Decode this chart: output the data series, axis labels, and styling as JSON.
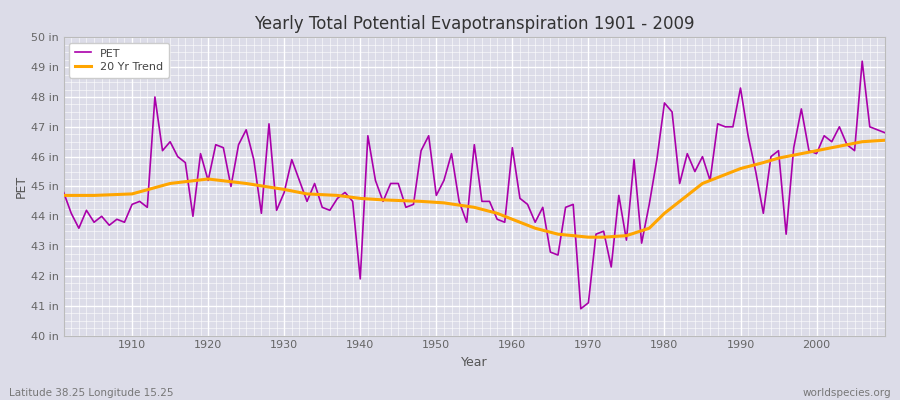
{
  "title": "Yearly Total Potential Evapotranspiration 1901 - 2009",
  "xlabel": "Year",
  "ylabel": "PET",
  "subtitle_left": "Latitude 38.25 Longitude 15.25",
  "subtitle_right": "worldspecies.org",
  "ylim": [
    40,
    50
  ],
  "pet_color": "#aa00aa",
  "trend_color": "#ffa500",
  "bg_color": "#dcdce8",
  "fig_color": "#dcdce8",
  "pet_data": [
    [
      1901,
      44.8
    ],
    [
      1902,
      44.1
    ],
    [
      1903,
      43.6
    ],
    [
      1904,
      44.2
    ],
    [
      1905,
      43.8
    ],
    [
      1906,
      44.0
    ],
    [
      1907,
      43.7
    ],
    [
      1908,
      43.9
    ],
    [
      1909,
      43.8
    ],
    [
      1910,
      44.4
    ],
    [
      1911,
      44.5
    ],
    [
      1912,
      44.3
    ],
    [
      1913,
      48.0
    ],
    [
      1914,
      46.2
    ],
    [
      1915,
      46.5
    ],
    [
      1916,
      46.0
    ],
    [
      1917,
      45.8
    ],
    [
      1918,
      44.0
    ],
    [
      1919,
      46.1
    ],
    [
      1920,
      45.2
    ],
    [
      1921,
      46.4
    ],
    [
      1922,
      46.3
    ],
    [
      1923,
      45.0
    ],
    [
      1924,
      46.4
    ],
    [
      1925,
      46.9
    ],
    [
      1926,
      45.9
    ],
    [
      1927,
      44.1
    ],
    [
      1928,
      47.1
    ],
    [
      1929,
      44.2
    ],
    [
      1930,
      44.8
    ],
    [
      1931,
      45.9
    ],
    [
      1932,
      45.2
    ],
    [
      1933,
      44.5
    ],
    [
      1934,
      45.1
    ],
    [
      1935,
      44.3
    ],
    [
      1936,
      44.2
    ],
    [
      1937,
      44.6
    ],
    [
      1938,
      44.8
    ],
    [
      1939,
      44.5
    ],
    [
      1940,
      41.9
    ],
    [
      1941,
      46.7
    ],
    [
      1942,
      45.2
    ],
    [
      1943,
      44.5
    ],
    [
      1944,
      45.1
    ],
    [
      1945,
      45.1
    ],
    [
      1946,
      44.3
    ],
    [
      1947,
      44.4
    ],
    [
      1948,
      46.2
    ],
    [
      1949,
      46.7
    ],
    [
      1950,
      44.7
    ],
    [
      1951,
      45.2
    ],
    [
      1952,
      46.1
    ],
    [
      1953,
      44.5
    ],
    [
      1954,
      43.8
    ],
    [
      1955,
      46.4
    ],
    [
      1956,
      44.5
    ],
    [
      1957,
      44.5
    ],
    [
      1958,
      43.9
    ],
    [
      1959,
      43.8
    ],
    [
      1960,
      46.3
    ],
    [
      1961,
      44.6
    ],
    [
      1962,
      44.4
    ],
    [
      1963,
      43.8
    ],
    [
      1964,
      44.3
    ],
    [
      1965,
      42.8
    ],
    [
      1966,
      42.7
    ],
    [
      1967,
      44.3
    ],
    [
      1968,
      44.4
    ],
    [
      1969,
      40.9
    ],
    [
      1970,
      41.1
    ],
    [
      1971,
      43.4
    ],
    [
      1972,
      43.5
    ],
    [
      1973,
      42.3
    ],
    [
      1974,
      44.7
    ],
    [
      1975,
      43.2
    ],
    [
      1976,
      45.9
    ],
    [
      1977,
      43.1
    ],
    [
      1978,
      44.4
    ],
    [
      1979,
      45.9
    ],
    [
      1980,
      47.8
    ],
    [
      1981,
      47.5
    ],
    [
      1982,
      45.1
    ],
    [
      1983,
      46.1
    ],
    [
      1984,
      45.5
    ],
    [
      1985,
      46.0
    ],
    [
      1986,
      45.2
    ],
    [
      1987,
      47.1
    ],
    [
      1988,
      47.0
    ],
    [
      1989,
      47.0
    ],
    [
      1990,
      48.3
    ],
    [
      1991,
      46.7
    ],
    [
      1992,
      45.5
    ],
    [
      1993,
      44.1
    ],
    [
      1994,
      46.0
    ],
    [
      1995,
      46.2
    ],
    [
      1996,
      43.4
    ],
    [
      1997,
      46.3
    ],
    [
      1998,
      47.6
    ],
    [
      1999,
      46.2
    ],
    [
      2000,
      46.1
    ],
    [
      2001,
      46.7
    ],
    [
      2002,
      46.5
    ],
    [
      2003,
      47.0
    ],
    [
      2004,
      46.4
    ],
    [
      2005,
      46.2
    ],
    [
      2006,
      49.2
    ],
    [
      2007,
      47.0
    ],
    [
      2008,
      46.9
    ],
    [
      2009,
      46.8
    ]
  ],
  "trend_data": [
    [
      1901,
      44.7
    ],
    [
      1905,
      44.7
    ],
    [
      1910,
      44.75
    ],
    [
      1915,
      45.1
    ],
    [
      1920,
      45.25
    ],
    [
      1925,
      45.1
    ],
    [
      1930,
      44.9
    ],
    [
      1933,
      44.75
    ],
    [
      1937,
      44.7
    ],
    [
      1940,
      44.6
    ],
    [
      1943,
      44.55
    ],
    [
      1948,
      44.5
    ],
    [
      1951,
      44.45
    ],
    [
      1955,
      44.3
    ],
    [
      1958,
      44.1
    ],
    [
      1960,
      43.9
    ],
    [
      1963,
      43.6
    ],
    [
      1966,
      43.4
    ],
    [
      1968,
      43.35
    ],
    [
      1970,
      43.3
    ],
    [
      1972,
      43.3
    ],
    [
      1975,
      43.35
    ],
    [
      1978,
      43.6
    ],
    [
      1980,
      44.1
    ],
    [
      1983,
      44.7
    ],
    [
      1985,
      45.1
    ],
    [
      1988,
      45.4
    ],
    [
      1990,
      45.6
    ],
    [
      1993,
      45.8
    ],
    [
      1995,
      45.95
    ],
    [
      1998,
      46.1
    ],
    [
      2000,
      46.2
    ],
    [
      2003,
      46.35
    ],
    [
      2006,
      46.5
    ],
    [
      2009,
      46.55
    ]
  ]
}
